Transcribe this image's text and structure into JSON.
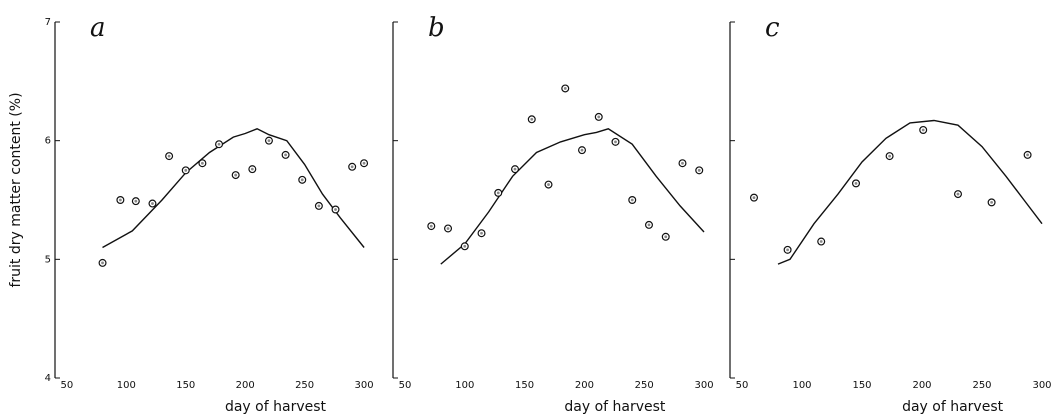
{
  "chart_data": [
    {
      "type": "scatter",
      "panel": "a",
      "xlabel": "day of harvest",
      "ylabel": "fruit dry matter content (%)",
      "xticks": [
        50,
        100,
        150,
        200,
        250,
        300
      ],
      "yticks": [
        4,
        5,
        6,
        7
      ],
      "xlim": [
        40,
        305
      ],
      "ylim": [
        4,
        7
      ],
      "points": [
        {
          "x": 80,
          "y": 4.97
        },
        {
          "x": 95,
          "y": 5.5
        },
        {
          "x": 108,
          "y": 5.49
        },
        {
          "x": 122,
          "y": 5.47
        },
        {
          "x": 136,
          "y": 5.87
        },
        {
          "x": 150,
          "y": 5.75
        },
        {
          "x": 164,
          "y": 5.81
        },
        {
          "x": 178,
          "y": 5.97
        },
        {
          "x": 192,
          "y": 5.71
        },
        {
          "x": 206,
          "y": 5.76
        },
        {
          "x": 220,
          "y": 6.0
        },
        {
          "x": 234,
          "y": 5.88
        },
        {
          "x": 248,
          "y": 5.67
        },
        {
          "x": 262,
          "y": 5.45
        },
        {
          "x": 276,
          "y": 5.42
        },
        {
          "x": 290,
          "y": 5.78
        },
        {
          "x": 300,
          "y": 5.81
        }
      ],
      "curve": [
        {
          "x": 80,
          "y": 5.1
        },
        {
          "x": 105,
          "y": 5.24
        },
        {
          "x": 130,
          "y": 5.5
        },
        {
          "x": 150,
          "y": 5.73
        },
        {
          "x": 170,
          "y": 5.9
        },
        {
          "x": 190,
          "y": 6.03
        },
        {
          "x": 200,
          "y": 6.06
        },
        {
          "x": 210,
          "y": 6.1
        },
        {
          "x": 220,
          "y": 6.05
        },
        {
          "x": 235,
          "y": 6.0
        },
        {
          "x": 250,
          "y": 5.8
        },
        {
          "x": 265,
          "y": 5.55
        },
        {
          "x": 280,
          "y": 5.35
        },
        {
          "x": 300,
          "y": 5.1
        }
      ]
    },
    {
      "type": "scatter",
      "panel": "b",
      "xlabel": "day of harvest",
      "xticks": [
        50,
        100,
        150,
        200,
        250,
        300
      ],
      "yticks": [
        4,
        5,
        6,
        7
      ],
      "xlim": [
        40,
        305
      ],
      "ylim": [
        4,
        7
      ],
      "points": [
        {
          "x": 72,
          "y": 5.28
        },
        {
          "x": 86,
          "y": 5.26
        },
        {
          "x": 100,
          "y": 5.11
        },
        {
          "x": 114,
          "y": 5.22
        },
        {
          "x": 128,
          "y": 5.56
        },
        {
          "x": 142,
          "y": 5.76
        },
        {
          "x": 156,
          "y": 6.18
        },
        {
          "x": 170,
          "y": 5.63
        },
        {
          "x": 184,
          "y": 6.44
        },
        {
          "x": 198,
          "y": 5.92
        },
        {
          "x": 212,
          "y": 6.2
        },
        {
          "x": 226,
          "y": 5.99
        },
        {
          "x": 240,
          "y": 5.5
        },
        {
          "x": 254,
          "y": 5.29
        },
        {
          "x": 268,
          "y": 5.19
        },
        {
          "x": 282,
          "y": 5.81
        },
        {
          "x": 296,
          "y": 5.75
        }
      ],
      "curve": [
        {
          "x": 80,
          "y": 4.96
        },
        {
          "x": 100,
          "y": 5.13
        },
        {
          "x": 120,
          "y": 5.4
        },
        {
          "x": 140,
          "y": 5.7
        },
        {
          "x": 160,
          "y": 5.9
        },
        {
          "x": 180,
          "y": 5.99
        },
        {
          "x": 200,
          "y": 6.05
        },
        {
          "x": 210,
          "y": 6.07
        },
        {
          "x": 220,
          "y": 6.1
        },
        {
          "x": 240,
          "y": 5.97
        },
        {
          "x": 260,
          "y": 5.7
        },
        {
          "x": 280,
          "y": 5.45
        },
        {
          "x": 300,
          "y": 5.23
        }
      ]
    },
    {
      "type": "scatter",
      "panel": "c",
      "xlabel": "day of harvest",
      "xticks": [
        50,
        100,
        150,
        200,
        250,
        300
      ],
      "yticks": [
        4,
        5,
        6,
        7
      ],
      "xlim": [
        40,
        305
      ],
      "ylim": [
        4,
        7
      ],
      "points": [
        {
          "x": 60,
          "y": 5.52
        },
        {
          "x": 88,
          "y": 5.08
        },
        {
          "x": 116,
          "y": 5.15
        },
        {
          "x": 145,
          "y": 5.64
        },
        {
          "x": 173,
          "y": 5.87
        },
        {
          "x": 201,
          "y": 6.09
        },
        {
          "x": 230,
          "y": 5.55
        },
        {
          "x": 258,
          "y": 5.48
        },
        {
          "x": 288,
          "y": 5.88
        }
      ],
      "curve": [
        {
          "x": 80,
          "y": 4.96
        },
        {
          "x": 90,
          "y": 5.0
        },
        {
          "x": 110,
          "y": 5.3
        },
        {
          "x": 130,
          "y": 5.55
        },
        {
          "x": 150,
          "y": 5.82
        },
        {
          "x": 170,
          "y": 6.02
        },
        {
          "x": 190,
          "y": 6.15
        },
        {
          "x": 210,
          "y": 6.17
        },
        {
          "x": 230,
          "y": 6.13
        },
        {
          "x": 250,
          "y": 5.95
        },
        {
          "x": 270,
          "y": 5.7
        },
        {
          "x": 285,
          "y": 5.5
        },
        {
          "x": 300,
          "y": 5.3
        }
      ]
    }
  ]
}
